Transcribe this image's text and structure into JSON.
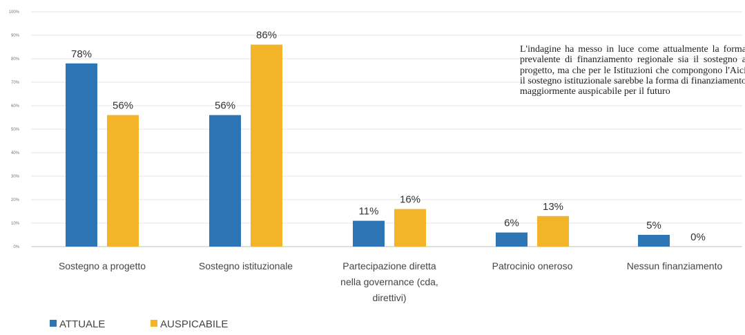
{
  "chart_data": {
    "type": "bar",
    "title": "",
    "xlabel": "",
    "ylabel": "",
    "ylim": [
      0,
      100
    ],
    "y_ticks": [
      "0%",
      "10%",
      "20%",
      "30%",
      "40%",
      "50%",
      "60%",
      "70%",
      "80%",
      "90%",
      "100%"
    ],
    "grid": true,
    "legend_position": "bottom-left",
    "categories": [
      "Sostegno a progetto",
      "Sostegno istituzionale",
      "Partecipazione diretta nella governance (cda, direttivi)",
      "Patrocinio oneroso",
      "Nessun finanziamento"
    ],
    "category_lines": [
      [
        "Sostegno a progetto"
      ],
      [
        "Sostegno istituzionale"
      ],
      [
        "Partecipazione diretta",
        "nella governance (cda,",
        "direttivi)"
      ],
      [
        "Patrocinio oneroso"
      ],
      [
        "Nessun finanziamento"
      ]
    ],
    "series": [
      {
        "name": "ATTUALE",
        "color": "#2E75B6",
        "values": [
          78,
          56,
          11,
          6,
          5
        ],
        "labels": [
          "78%",
          "56%",
          "11%",
          "6%",
          "5%"
        ]
      },
      {
        "name": "AUSPICABILE",
        "color": "#F4B42A",
        "values": [
          56,
          86,
          16,
          13,
          0
        ],
        "labels": [
          "56%",
          "86%",
          "16%",
          "13%",
          "0%"
        ]
      }
    ]
  },
  "annotation": "L'indagine ha messo in luce come attualmente la forma prevalente di finanziamento regionale sia il sostegno a progetto, ma che per le Istituzioni che compongono l'Aici il sostegno istituzionale sarebbe la forma di finanziamento maggiormente auspicabile per il futuro"
}
